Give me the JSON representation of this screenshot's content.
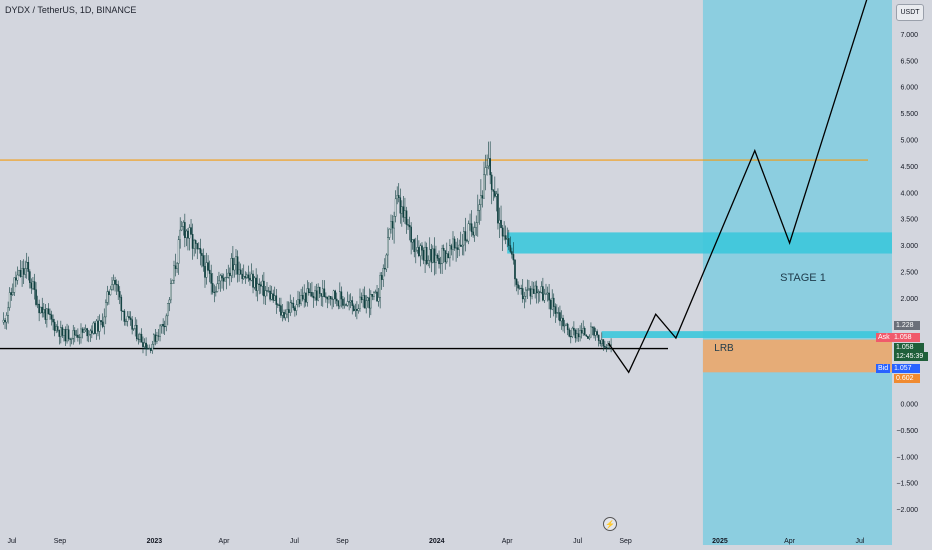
{
  "header": {
    "title": "DYDX / TetherUS, 1D, BINANCE",
    "currency": "USDT"
  },
  "colors": {
    "background": "#d3d6de",
    "candle": "#0f3f3f",
    "resistance": "#f39c12",
    "support": "#000000",
    "target_zone": "#7fcce0",
    "zone_band": "#3cc8dc",
    "lrb_zone": "#f0a96b",
    "projection": "#000000"
  },
  "chart_data": {
    "type": "candlestick",
    "symbol": "DYDX / TetherUS",
    "interval": "1D",
    "exchange": "BINANCE",
    "x_ticks": [
      {
        "label": "Jul",
        "date": "2022-07-01",
        "bold": false
      },
      {
        "label": "Sep",
        "date": "2022-09-01",
        "bold": false
      },
      {
        "label": "2023",
        "date": "2023-01-01",
        "bold": true
      },
      {
        "label": "Apr",
        "date": "2023-04-01",
        "bold": false
      },
      {
        "label": "Jul",
        "date": "2023-07-01",
        "bold": false
      },
      {
        "label": "Sep",
        "date": "2023-09-01",
        "bold": false
      },
      {
        "label": "2024",
        "date": "2024-01-01",
        "bold": true
      },
      {
        "label": "Apr",
        "date": "2024-04-01",
        "bold": false
      },
      {
        "label": "Jul",
        "date": "2024-07-01",
        "bold": false
      },
      {
        "label": "Sep",
        "date": "2024-09-01",
        "bold": false
      },
      {
        "label": "2025",
        "date": "2025-01-01",
        "bold": true
      },
      {
        "label": "Apr",
        "date": "2025-04-01",
        "bold": false
      },
      {
        "label": "Jul",
        "date": "2025-07-01",
        "bold": false
      }
    ],
    "y_ticks": [
      "7.000",
      "6.500",
      "6.000",
      "5.500",
      "5.000",
      "4.500",
      "4.000",
      "3.500",
      "3.000",
      "2.500",
      "2.000",
      "0.000",
      "−0.500",
      "−1.000",
      "−1.500",
      "−2.000"
    ],
    "y_tick_values": [
      7,
      6.5,
      6,
      5.5,
      5,
      4.5,
      4,
      3.5,
      3,
      2.5,
      2,
      0,
      -0.5,
      -1,
      -1.5,
      -2
    ],
    "price_path": [
      [
        "2022-06-20",
        1.55
      ],
      [
        "2022-07-05",
        2.35
      ],
      [
        "2022-07-20",
        2.55
      ],
      [
        "2022-08-05",
        1.85
      ],
      [
        "2022-09-05",
        1.3
      ],
      [
        "2022-10-01",
        1.35
      ],
      [
        "2022-10-25",
        1.5
      ],
      [
        "2022-11-08",
        2.45
      ],
      [
        "2022-11-25",
        1.6
      ],
      [
        "2022-12-25",
        1.05
      ],
      [
        "2023-01-15",
        1.6
      ],
      [
        "2023-02-07",
        3.4
      ],
      [
        "2023-03-01",
        2.75
      ],
      [
        "2023-03-20",
        2.2
      ],
      [
        "2023-04-15",
        2.7
      ],
      [
        "2023-05-01",
        2.4
      ],
      [
        "2023-06-01",
        2.05
      ],
      [
        "2023-06-15",
        1.7
      ],
      [
        "2023-07-15",
        2.05
      ],
      [
        "2023-08-15",
        2.1
      ],
      [
        "2023-09-15",
        1.85
      ],
      [
        "2023-10-15",
        2.0
      ],
      [
        "2023-10-25",
        2.6
      ],
      [
        "2023-11-10",
        3.85
      ],
      [
        "2023-12-01",
        3.1
      ],
      [
        "2023-12-25",
        2.75
      ],
      [
        "2024-01-20",
        2.9
      ],
      [
        "2024-02-15",
        3.3
      ],
      [
        "2024-03-08",
        4.5
      ],
      [
        "2024-03-20",
        3.6
      ],
      [
        "2024-04-05",
        3.05
      ],
      [
        "2024-04-15",
        2.05
      ],
      [
        "2024-05-10",
        2.2
      ],
      [
        "2024-06-01",
        1.85
      ],
      [
        "2024-06-20",
        1.35
      ],
      [
        "2024-07-20",
        1.35
      ],
      [
        "2024-08-05",
        1.06
      ],
      [
        "2024-08-15",
        1.058
      ]
    ],
    "projection_path": [
      [
        "2024-08-10",
        1.15
      ],
      [
        "2024-09-05",
        0.6
      ],
      [
        "2024-10-10",
        1.7
      ],
      [
        "2024-11-05",
        1.25
      ],
      [
        "2025-02-15",
        4.8
      ],
      [
        "2025-04-01",
        3.05
      ],
      [
        "2025-07-15",
        7.9
      ]
    ],
    "resistance_level": 4.62,
    "support_level": 1.05,
    "target_zone": {
      "from": "2024-12-10",
      "to": "2025-08-20"
    },
    "stage1_zone": {
      "from": "2024-04-01",
      "to": "2025-08-20",
      "low": 2.85,
      "high": 3.25,
      "label": "STAGE 1"
    },
    "small_zone": {
      "from": "2024-08-01",
      "to": "2025-07-25",
      "low": 1.25,
      "high": 1.38
    },
    "lrb_zone": {
      "from": "2024-12-10",
      "to": "2025-08-20",
      "low": 0.6,
      "high": 1.22,
      "label": "LRB"
    },
    "price_tags": [
      {
        "text": "1.228",
        "color": "#6b6f79",
        "value": 1.228
      },
      {
        "text": "Ask",
        "color": "#f05a6b",
        "value": 1.058
      },
      {
        "text": "1.058",
        "color": "#f05a6b",
        "value": 1.058
      },
      {
        "text": "1.058",
        "color": "#1f5f3a",
        "value": 1.058
      },
      {
        "text": "12:45:39",
        "color": "#1f5f3a",
        "value": 1.058
      },
      {
        "text": "Bid",
        "color": "#2962ff",
        "value": 1.057
      },
      {
        "text": "1.057",
        "color": "#2962ff",
        "value": 1.057
      },
      {
        "text": "0.602",
        "color": "#f08a30",
        "value": 0.602
      }
    ]
  },
  "footer": {
    "replay_icon": "lightning-icon"
  }
}
